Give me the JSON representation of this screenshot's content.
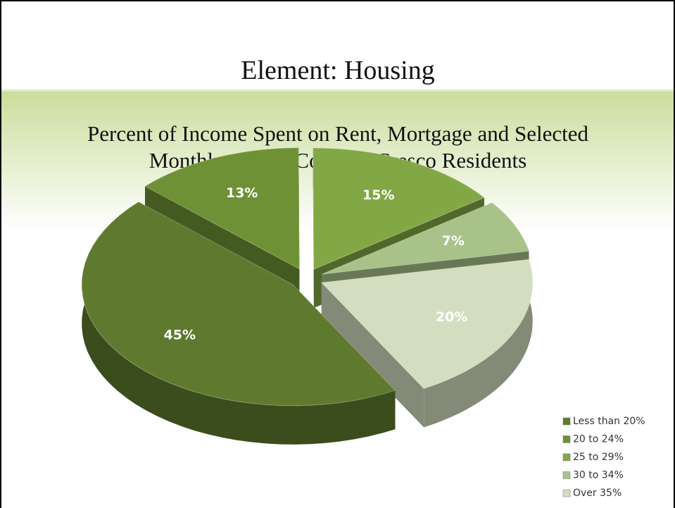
{
  "slide_title": "Element:  Housing",
  "chart_data": {
    "type": "pie",
    "title": [
      "Percent of Income Spent on Rent, Mortgage and Selected",
      "Monthly Owner Costs by Cresco Residents"
    ],
    "categories": [
      "Less than 20%",
      "20 to 24%",
      "25 to 29%",
      "30 to 34%",
      "Over 35%"
    ],
    "values": [
      45,
      13,
      15,
      7,
      20
    ],
    "value_labels": [
      "45%",
      "13%",
      "15%",
      "7%",
      "20%"
    ],
    "colors": [
      "#5f7a2e",
      "#6e9135",
      "#82a845",
      "#a8c289",
      "#d3dec0"
    ],
    "legend": "bottom-right"
  }
}
